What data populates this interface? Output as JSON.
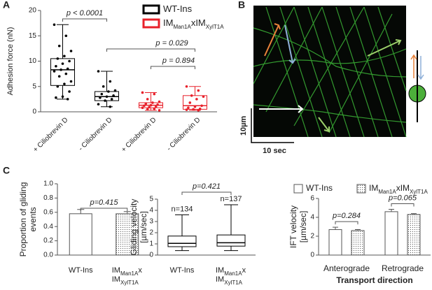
{
  "panel_labels": [
    "A",
    "B",
    "C"
  ],
  "image_panel": {
    "scale_y": "10µm",
    "scale_x": "10 sec"
  },
  "chart_data": [
    {
      "type": "box",
      "ylabel": "Adhesion force (nN)",
      "categories": [
        "+ Ciliobrevin D",
        "- Ciliobrevin D",
        "+ Ciliobrevin D",
        "- Ciliobrevin D"
      ],
      "ylim": [
        0,
        20
      ],
      "yticks": [
        0,
        5,
        10,
        15,
        20
      ],
      "annotations": [
        "p < 0.0001",
        "p = 0.029",
        "p = 0.894"
      ],
      "series": [
        {
          "name": [
            "WT-Ins"
          ],
          "color": "#000000",
          "values": [
            {
              "min": 2.5,
              "q1": 5.2,
              "median": 8.3,
              "q3": 10.5,
              "max": 17.2
            },
            {
              "min": 1,
              "q1": 2.2,
              "median": 3,
              "q3": 4,
              "max": 8
            },
            null,
            null
          ],
          "points": [
            [
              17.2,
              15,
              13,
              12,
              11,
              10.5,
              10,
              9.5,
              9,
              8.5,
              8.3,
              8,
              7.5,
              7,
              6,
              5.5,
              5,
              4,
              3,
              2.8,
              2.5
            ],
            [
              8,
              6,
              5,
              4.2,
              4,
              3.5,
              3.2,
              3,
              2.8,
              2.5,
              2.2,
              1.5,
              1
            ],
            null,
            null
          ]
        },
        {
          "name": [
            "IM",
            "Man1A",
            "xIM",
            "XylT1A"
          ],
          "color": "#e8202a",
          "values": [
            null,
            null,
            {
              "min": 0.3,
              "q1": 0.8,
              "median": 1.3,
              "q3": 1.8,
              "max": 3.8
            },
            {
              "min": 0.3,
              "q1": 0.5,
              "median": 1.2,
              "q3": 3.2,
              "max": 5
            }
          ],
          "points": [
            null,
            null,
            [
              3.8,
              3.5,
              2.5,
              2,
              1.8,
              1.6,
              1.4,
              1.3,
              1.2,
              1,
              0.9,
              0.8,
              0.6,
              0.5,
              0.3
            ],
            [
              5,
              4.2,
              3.2,
              3,
              2.5,
              1.8,
              1.2,
              1,
              0.8,
              0.6,
              0.5,
              0.4,
              0.3
            ]
          ]
        }
      ]
    },
    {
      "type": "bar",
      "ylabel": [
        "Proportion of gliding",
        "events"
      ],
      "categories": [
        [
          "WT-Ins"
        ],
        [
          "IM",
          "Man1A",
          "x",
          "IM",
          "XylT1A"
        ]
      ],
      "ylim": [
        0,
        1
      ],
      "yticks": [
        {
          "value": 0,
          "label": "0.0"
        },
        0.2,
        0.4,
        0.6,
        0.8,
        {
          "value": 1,
          "label": "1.0"
        }
      ],
      "annotations": [
        "p=0.415"
      ],
      "series": [
        {
          "values": [
            0.58,
            0.58
          ],
          "errors": [
            0.06,
            0.03
          ],
          "fills": [
            "#ffffff",
            "dots"
          ]
        }
      ]
    },
    {
      "type": "box",
      "ylabel": [
        "Gliding velocity",
        "[µm/sec]"
      ],
      "categories": [
        [
          "WT-Ins"
        ],
        [
          "IM",
          "Man1A",
          "x",
          "IM",
          "XylT1A"
        ]
      ],
      "ylim": [
        0,
        5
      ],
      "yticks": [
        0,
        1,
        2,
        3,
        4,
        5
      ],
      "annotations": [
        "p=0.421"
      ],
      "value_labels": [
        "n=134",
        "n=137"
      ],
      "series": [
        {
          "color": "#000000",
          "values": [
            {
              "min": 0.4,
              "q1": 0.75,
              "median": 1.05,
              "q3": 1.7,
              "max": 3.6
            },
            {
              "min": 0.4,
              "q1": 0.8,
              "median": 1.1,
              "q3": 1.8,
              "max": 4.5
            }
          ]
        }
      ]
    },
    {
      "type": "groupbar",
      "ylabel": [
        "IFT velocity",
        "[µm/sec]"
      ],
      "xlabel": "Transport direction",
      "categories": [
        "Anterograde",
        "Retrograde"
      ],
      "ylim": [
        0,
        6
      ],
      "yticks": [
        0,
        2,
        4,
        6
      ],
      "annotations": [
        "p=0.284",
        "p=0.065"
      ],
      "series": [
        {
          "name": [
            "WT-Ins"
          ],
          "fill": "#ffffff",
          "values": [
            2.7,
            4.6
          ],
          "errors": [
            0.25,
            0.25
          ]
        },
        {
          "name": [
            "IM",
            "Man1A",
            "xIM",
            "XylT1A"
          ],
          "fill": "dots",
          "values": [
            2.6,
            4.3
          ],
          "errors": [
            0.1,
            0.1
          ]
        }
      ]
    }
  ]
}
